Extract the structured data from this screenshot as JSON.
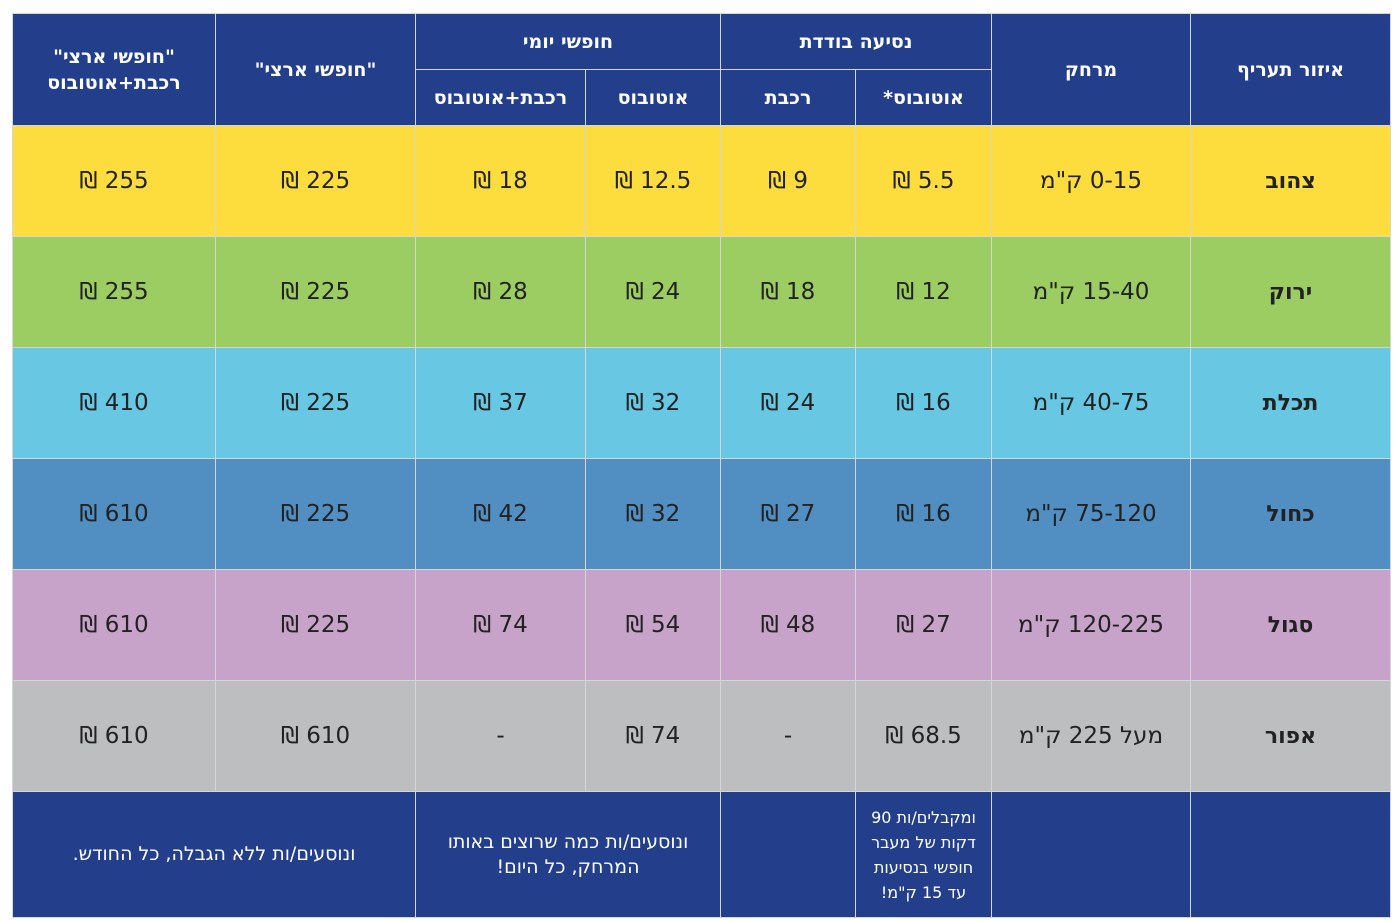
{
  "headers": {
    "zone": "איזור תעריף",
    "distance": "מרחק",
    "single_ride": "נסיעה בודדת",
    "single_bus": "אוטובוס*",
    "single_train": "רכבת",
    "daily_free": "חופשי יומי",
    "daily_bus": "אוטובוס",
    "daily_train_bus": "רכבת+אוטובוס",
    "national_free": "\"חופשי ארצי\"",
    "national_free_train_bus": "\"חופשי ארצי\"\nרכבת+אוטובוס"
  },
  "rows": [
    {
      "zone": "צהוב",
      "color": "#fddd3e",
      "distance": "0-15 ק\"מ",
      "single_bus": "5.5 ₪",
      "single_train": "9 ₪",
      "daily_bus": "12.5 ₪",
      "daily_train_bus": "18 ₪",
      "national": "225 ₪",
      "national_train_bus": "255 ₪"
    },
    {
      "zone": "ירוק",
      "color": "#9ccd62",
      "distance": "15-40 ק\"מ",
      "single_bus": "12 ₪",
      "single_train": "18 ₪",
      "daily_bus": "24 ₪",
      "daily_train_bus": "28 ₪",
      "national": "225 ₪",
      "national_train_bus": "255 ₪"
    },
    {
      "zone": "תכלת",
      "color": "#68c7e2",
      "distance": "40-75 ק\"מ",
      "single_bus": "16 ₪",
      "single_train": "24 ₪",
      "daily_bus": "32 ₪",
      "daily_train_bus": "37 ₪",
      "national": "225 ₪",
      "national_train_bus": "410 ₪"
    },
    {
      "zone": "כחול",
      "color": "#518ec1",
      "distance": "75-120 ק\"מ",
      "single_bus": "16 ₪",
      "single_train": "27 ₪",
      "daily_bus": "32 ₪",
      "daily_train_bus": "42 ₪",
      "national": "225 ₪",
      "national_train_bus": "610 ₪"
    },
    {
      "zone": "סגול",
      "color": "#c7a3c9",
      "distance": "120-225 ק\"מ",
      "single_bus": "27 ₪",
      "single_train": "48 ₪",
      "daily_bus": "54 ₪",
      "daily_train_bus": "74 ₪",
      "national": "225 ₪",
      "national_train_bus": "610 ₪"
    },
    {
      "zone": "אפור",
      "color": "#bdbec0",
      "distance": "מעל 225 ק\"מ",
      "single_bus": "68.5 ₪",
      "single_train": "-",
      "daily_bus": "74 ₪",
      "daily_train_bus": "-",
      "national": "610 ₪",
      "national_train_bus": "610 ₪"
    }
  ],
  "footer": {
    "single_bus_note": "ומקבלים/ות 90 דקות של מעבר חופשי בנסיעות עד 15 ק\"מ!",
    "daily_note": "ונוסעים/ות כמה שרוצים באותו המרחק, כל היום!",
    "national_note": "ונוסעים/ות ללא הגבלה, כל החודש."
  },
  "colors": {
    "header_bg": "#233e8b",
    "header_text": "#ffffff"
  }
}
